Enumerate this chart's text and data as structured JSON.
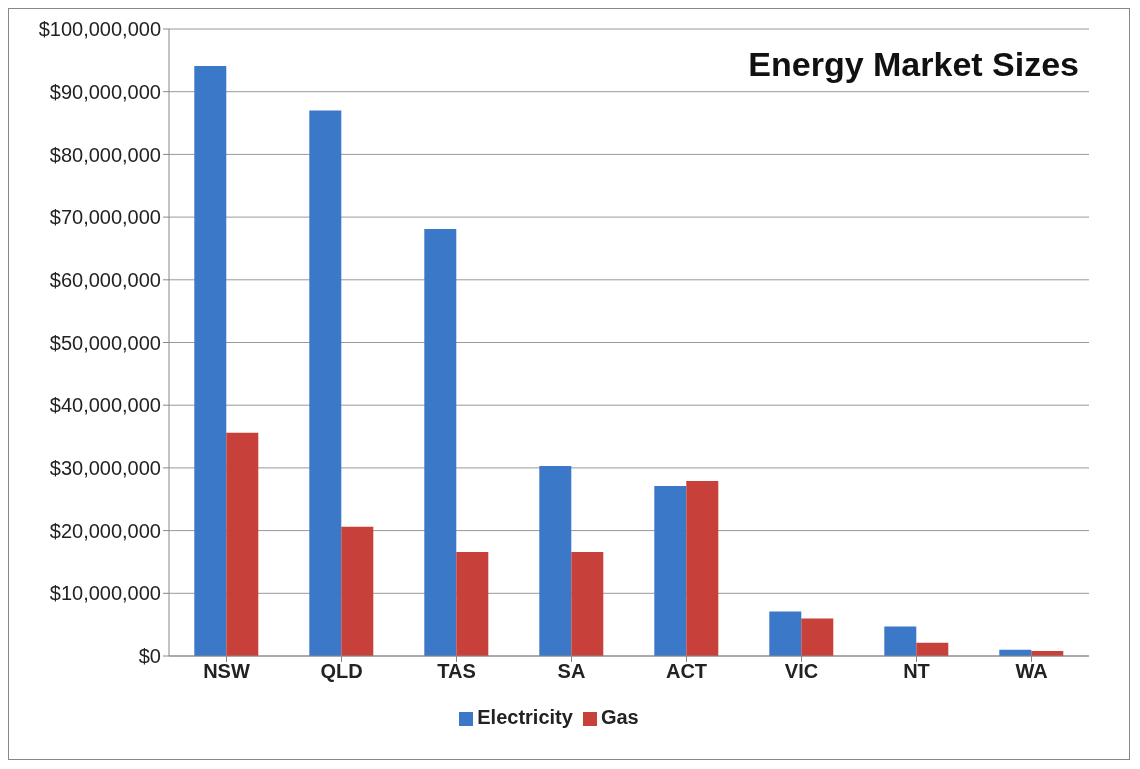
{
  "chart_data": {
    "type": "bar",
    "title": "Energy Market Sizes",
    "categories": [
      "NSW",
      "QLD",
      "TAS",
      "SA",
      "ACT",
      "VIC",
      "NT",
      "WA"
    ],
    "series": [
      {
        "name": "Electricity",
        "color": "#3b78c8",
        "values": [
          94100000,
          87000000,
          68100000,
          30300000,
          27100000,
          7100000,
          4700000,
          1000000
        ]
      },
      {
        "name": "Gas",
        "color": "#c8403a",
        "values": [
          35600000,
          20600000,
          16600000,
          16600000,
          27900000,
          6000000,
          2100000,
          800000
        ]
      }
    ],
    "ylim": [
      0,
      100000000
    ],
    "yticks": [
      {
        "value": 0,
        "label": "$0"
      },
      {
        "value": 10000000,
        "label": "$10,000,000"
      },
      {
        "value": 20000000,
        "label": "$20,000,000"
      },
      {
        "value": 30000000,
        "label": "$30,000,000"
      },
      {
        "value": 40000000,
        "label": "$40,000,000"
      },
      {
        "value": 50000000,
        "label": "$50,000,000"
      },
      {
        "value": 60000000,
        "label": "$60,000,000"
      },
      {
        "value": 70000000,
        "label": "$70,000,000"
      },
      {
        "value": 80000000,
        "label": "$80,000,000"
      },
      {
        "value": 90000000,
        "label": "$90,000,000"
      },
      {
        "value": 100000000,
        "label": "$100,000,000"
      }
    ],
    "grid": "y",
    "legend": "bottom"
  }
}
